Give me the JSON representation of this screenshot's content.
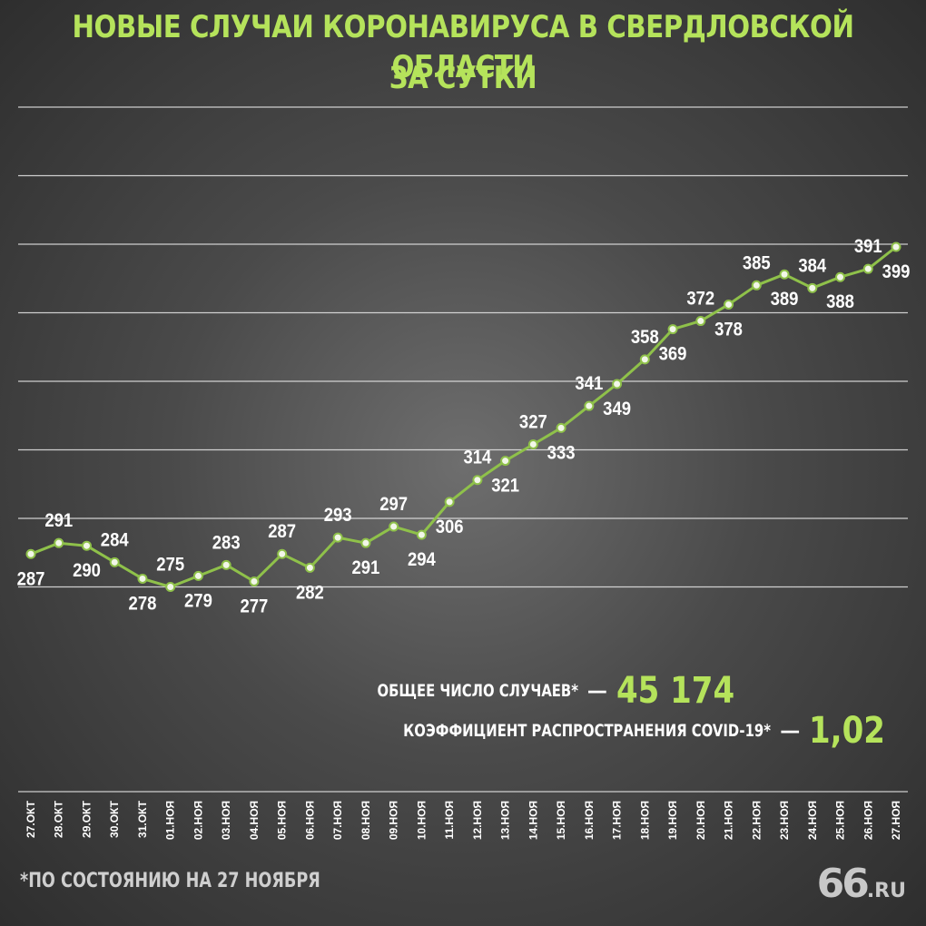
{
  "title_line1": "НОВЫЕ СЛУЧАИ КОРОНАВИРУСА В СВЕРДЛОВСКОЙ ОБЛАСТИ",
  "title_line2": "ЗА СУТКИ",
  "stats": {
    "total_label": "ОБЩЕЕ ЧИСЛО СЛУЧАЕВ*",
    "total_value": "45 174",
    "r_label": "КОЭФФИЦИЕНТ РАСПРОСТРАНЕНИЯ COVID-19*",
    "r_value": "1,02",
    "dash": "—"
  },
  "footnote": "*ПО СОСТОЯНИЮ НА 27 НОЯБРЯ",
  "logo": {
    "big": "66",
    "small": ".RU"
  },
  "colors": {
    "accent": "#b5e35b",
    "line": "#8fc14a",
    "grid": "#e8e8e8",
    "text": "#ffffff"
  },
  "chart_data": {
    "type": "line",
    "title": "НОВЫЕ СЛУЧАИ КОРОНАВИРУСА В СВЕРДЛОВСКОЙ ОБЛАСТИ ЗА СУТКИ",
    "categories": [
      "27.ОКТ",
      "28.ОКТ",
      "29.ОКТ",
      "30.ОКТ",
      "31.ОКТ",
      "01.НОЯ",
      "02.НОЯ",
      "03.НОЯ",
      "04.НОЯ",
      "05.НОЯ",
      "06.НОЯ",
      "07.НОЯ",
      "08.НОЯ",
      "09.НОЯ",
      "10.НОЯ",
      "11.НОЯ",
      "12.НОЯ",
      "13.НОЯ",
      "14.НОЯ",
      "15.НОЯ",
      "16.НОЯ",
      "17.НОЯ",
      "18.НОЯ",
      "19.НОЯ",
      "20.НОЯ",
      "21.НОЯ",
      "22.НОЯ",
      "23.НОЯ",
      "24.НОЯ",
      "25.НОЯ",
      "26.НОЯ",
      "27.НОЯ"
    ],
    "values": [
      287,
      291,
      290,
      284,
      278,
      275,
      279,
      283,
      277,
      287,
      282,
      293,
      291,
      297,
      294,
      306,
      314,
      321,
      327,
      333,
      341,
      349,
      358,
      369,
      372,
      378,
      385,
      389,
      384,
      388,
      391,
      399
    ],
    "label_above": [
      false,
      true,
      false,
      true,
      false,
      true,
      false,
      true,
      false,
      true,
      false,
      true,
      false,
      true,
      false,
      false,
      true,
      false,
      true,
      false,
      true,
      false,
      true,
      false,
      true,
      false,
      true,
      false,
      true,
      false,
      true,
      false
    ],
    "ylim": [
      200,
      450
    ],
    "grid": true,
    "xlabel": "",
    "ylabel": ""
  }
}
